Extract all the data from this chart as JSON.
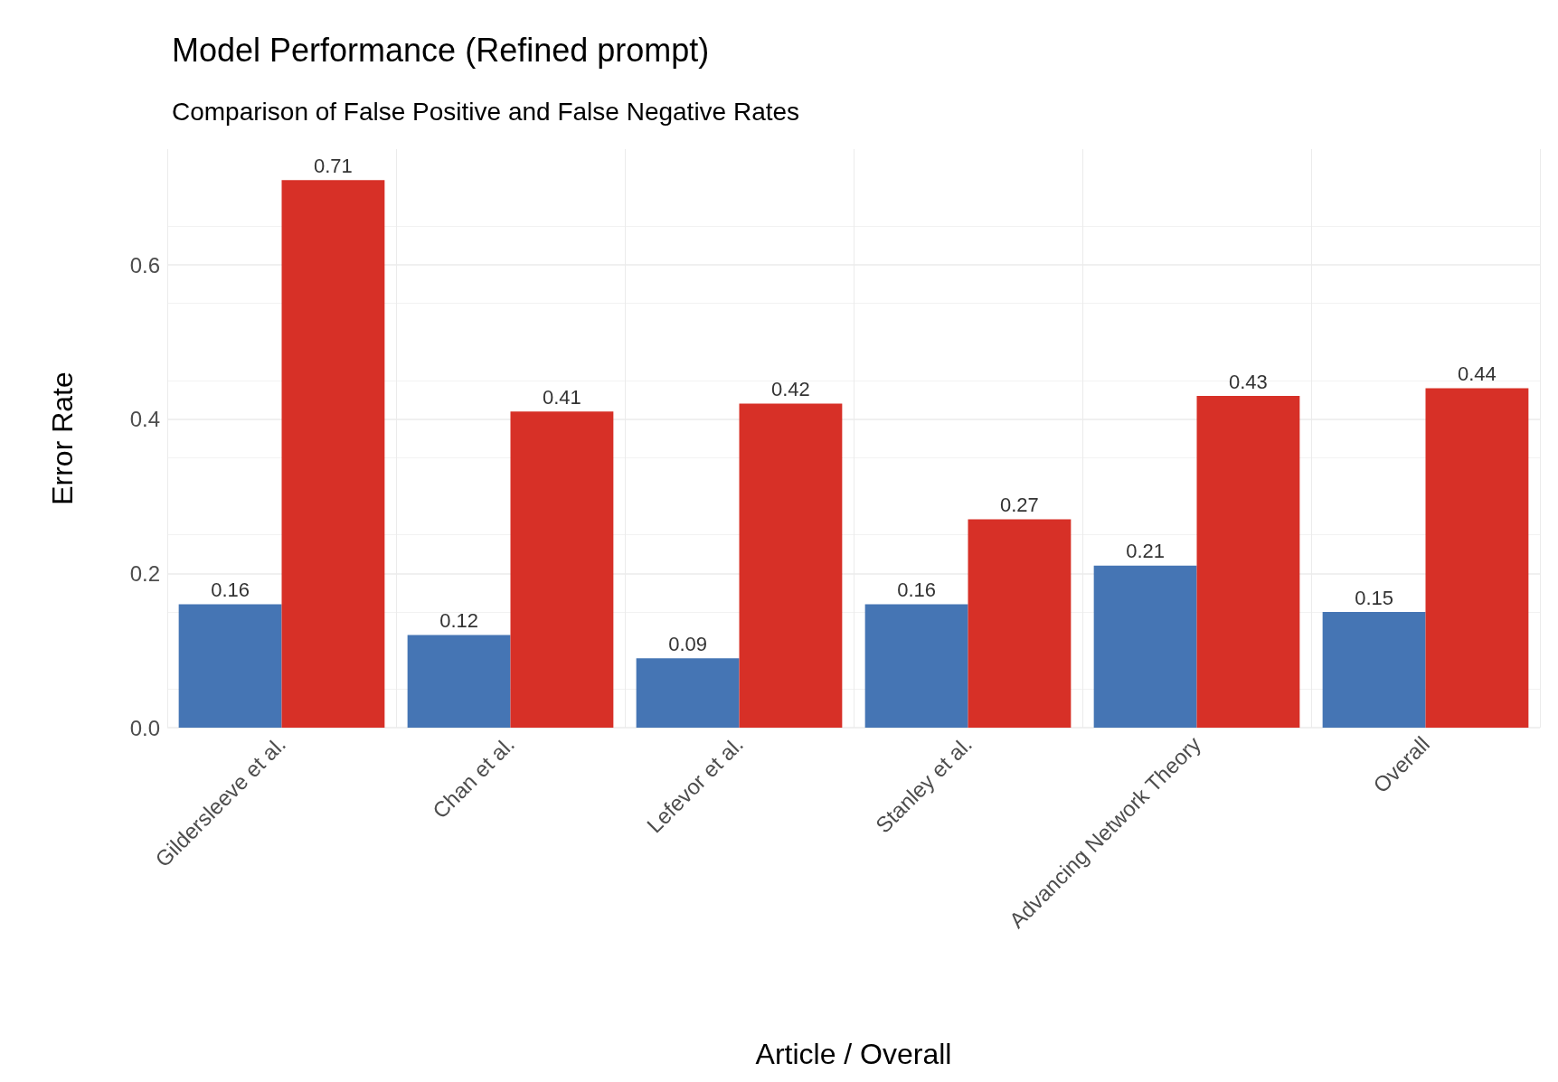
{
  "chart_data": {
    "type": "bar",
    "title": "Model Performance (Refined prompt)",
    "subtitle": "Comparison of False Positive and False Negative Rates",
    "xlabel": "Article / Overall",
    "ylabel": "Error Rate",
    "categories": [
      "Gildersleeve et al.",
      "Chan et al.",
      "Lefevor et al.",
      "Stanley et al.",
      "Advancing Network Theory",
      "Overall"
    ],
    "series": [
      {
        "color": "#4575b4",
        "values": [
          0.16,
          0.12,
          0.09,
          0.16,
          0.21,
          0.15
        ]
      },
      {
        "color": "#d73027",
        "values": [
          0.71,
          0.41,
          0.42,
          0.27,
          0.43,
          0.44
        ]
      }
    ],
    "ylim": [
      0,
      0.75
    ],
    "yticks": [
      {
        "value": 0,
        "label": "0.0"
      },
      {
        "value": 0.2,
        "label": "0.2"
      },
      {
        "value": 0.4,
        "label": "0.4"
      },
      {
        "value": 0.6,
        "label": "0.6"
      }
    ],
    "grid": true,
    "data_labels": true
  }
}
